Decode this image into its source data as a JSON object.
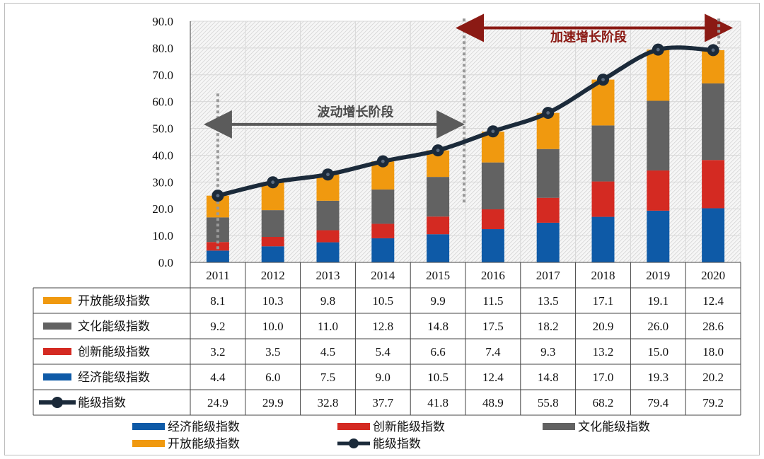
{
  "chart_data": {
    "type": "bar",
    "stacked": true,
    "categories": [
      "2011",
      "2012",
      "2013",
      "2014",
      "2015",
      "2016",
      "2017",
      "2018",
      "2019",
      "2020"
    ],
    "yticks": [
      "0.0",
      "10.0",
      "20.0",
      "30.0",
      "40.0",
      "50.0",
      "60.0",
      "70.0",
      "80.0",
      "90.0"
    ],
    "ylim": [
      0,
      90
    ],
    "series": [
      {
        "name": "经济能级指数",
        "color": "#0e5aa7",
        "values": [
          4.4,
          6.0,
          7.5,
          9.0,
          10.5,
          12.4,
          14.8,
          17.0,
          19.3,
          20.2
        ],
        "labels": [
          "4.4",
          "6.0",
          "7.5",
          "9.0",
          "10.5",
          "12.4",
          "14.8",
          "17.0",
          "19.3",
          "20.2"
        ]
      },
      {
        "name": "创新能级指数",
        "color": "#d42a22",
        "values": [
          3.2,
          3.5,
          4.5,
          5.4,
          6.6,
          7.4,
          9.3,
          13.2,
          15.0,
          18.0
        ],
        "labels": [
          "3.2",
          "3.5",
          "4.5",
          "5.4",
          "6.6",
          "7.4",
          "9.3",
          "13.2",
          "15.0",
          "18.0"
        ]
      },
      {
        "name": "文化能级指数",
        "color": "#626262",
        "values": [
          9.2,
          10.0,
          11.0,
          12.8,
          14.8,
          17.5,
          18.2,
          20.9,
          26.0,
          28.6
        ],
        "labels": [
          "9.2",
          "10.0",
          "11.0",
          "12.8",
          "14.8",
          "17.5",
          "18.2",
          "20.9",
          "26.0",
          "28.6"
        ]
      },
      {
        "name": "开放能级指数",
        "color": "#f0990f",
        "values": [
          8.1,
          10.3,
          9.8,
          10.5,
          9.9,
          11.5,
          13.5,
          17.1,
          19.1,
          12.4
        ],
        "labels": [
          "8.1",
          "10.3",
          "9.8",
          "10.5",
          "9.9",
          "11.5",
          "13.5",
          "17.1",
          "19.1",
          "12.4"
        ]
      }
    ],
    "line": {
      "name": "能级指数",
      "color": "#1b2a3a",
      "values": [
        24.9,
        29.9,
        32.8,
        37.7,
        41.8,
        48.9,
        55.8,
        68.2,
        79.4,
        79.2
      ],
      "labels": [
        "24.9",
        "29.9",
        "32.8",
        "37.7",
        "41.8",
        "48.9",
        "55.8",
        "68.2",
        "79.4",
        "79.2"
      ]
    },
    "annotations": [
      {
        "text": "波动增长阶段",
        "color": "#4b4b4b",
        "from": "2011",
        "to": "2015"
      },
      {
        "text": "加速增长阶段",
        "color": "#8b1a14",
        "from": "2016",
        "to": "2020"
      }
    ],
    "table_rows": [
      "开放能级指数",
      "文化能级指数",
      "创新能级指数",
      "经济能级指数",
      "能级指数"
    ],
    "legend": [
      "经济能级指数",
      "创新能级指数",
      "文化能级指数",
      "开放能级指数",
      "能级指数"
    ]
  }
}
